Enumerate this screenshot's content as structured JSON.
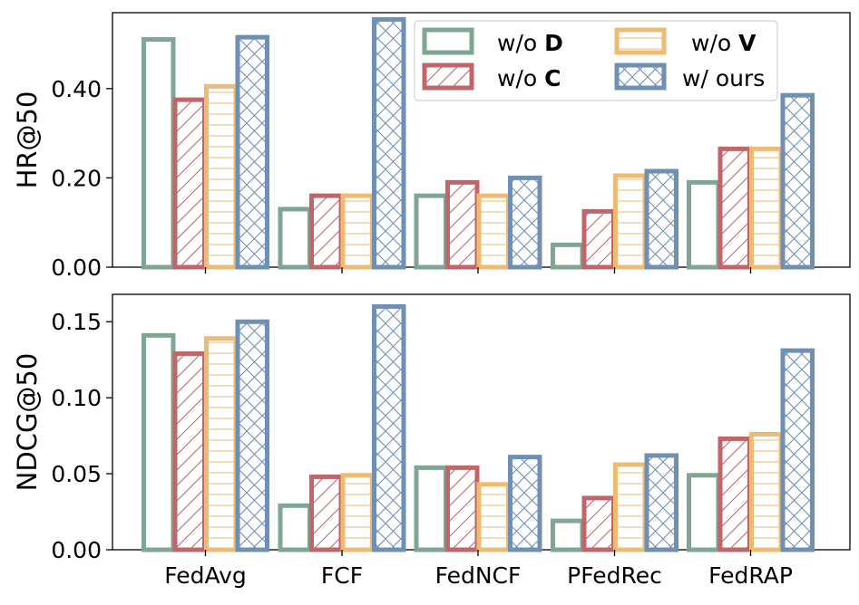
{
  "chart_data": [
    {
      "type": "bar",
      "title": "",
      "xlabel": "",
      "ylabel": "HR@50",
      "ylim": [
        0,
        0.57
      ],
      "yticks": [
        0.0,
        0.2,
        0.4
      ],
      "ytick_labels": [
        "0.00",
        "0.20",
        "0.40"
      ],
      "categories": [
        "FedAvg",
        "FCF",
        "FedNCF",
        "PFedRec",
        "FedRAP"
      ],
      "series": [
        {
          "name": "w/o D",
          "values": [
            0.51,
            0.13,
            0.16,
            0.05,
            0.19
          ]
        },
        {
          "name": "w/o C",
          "values": [
            0.375,
            0.16,
            0.19,
            0.125,
            0.265
          ]
        },
        {
          "name": "w/o V",
          "values": [
            0.405,
            0.16,
            0.16,
            0.205,
            0.265
          ]
        },
        {
          "name": "w/ ours",
          "values": [
            0.515,
            0.555,
            0.2,
            0.215,
            0.385
          ]
        }
      ],
      "legend": {
        "position": "top-right",
        "entries": [
          {
            "prefix": "w/o",
            "bold": "D"
          },
          {
            "prefix": "w/o",
            "bold": "V"
          },
          {
            "prefix": "w/o",
            "bold": "C"
          },
          {
            "prefix": "w/ ours",
            "bold": ""
          }
        ]
      }
    },
    {
      "type": "bar",
      "title": "",
      "xlabel": "",
      "ylabel": "NDCG@50",
      "ylim": [
        0,
        0.168
      ],
      "yticks": [
        0.0,
        0.05,
        0.1,
        0.15
      ],
      "ytick_labels": [
        "0.00",
        "0.05",
        "0.10",
        "0.15"
      ],
      "categories": [
        "FedAvg",
        "FCF",
        "FedNCF",
        "PFedRec",
        "FedRAP"
      ],
      "series": [
        {
          "name": "w/o D",
          "values": [
            0.141,
            0.029,
            0.054,
            0.019,
            0.049
          ]
        },
        {
          "name": "w/o C",
          "values": [
            0.129,
            0.048,
            0.054,
            0.034,
            0.073
          ]
        },
        {
          "name": "w/o V",
          "values": [
            0.139,
            0.049,
            0.043,
            0.056,
            0.076
          ]
        },
        {
          "name": "w/ ours",
          "values": [
            0.15,
            0.16,
            0.061,
            0.062,
            0.131
          ]
        }
      ]
    }
  ],
  "colors": {
    "w/o D": "#7fa693",
    "w/o C": "#c0666b",
    "w/o V": "#eebb73",
    "w/ ours": "#6f8fb5"
  },
  "hatches": {
    "w/o D": "none",
    "w/o C": "diagonal",
    "w/o V": "horizontal",
    "w/ ours": "cross"
  }
}
